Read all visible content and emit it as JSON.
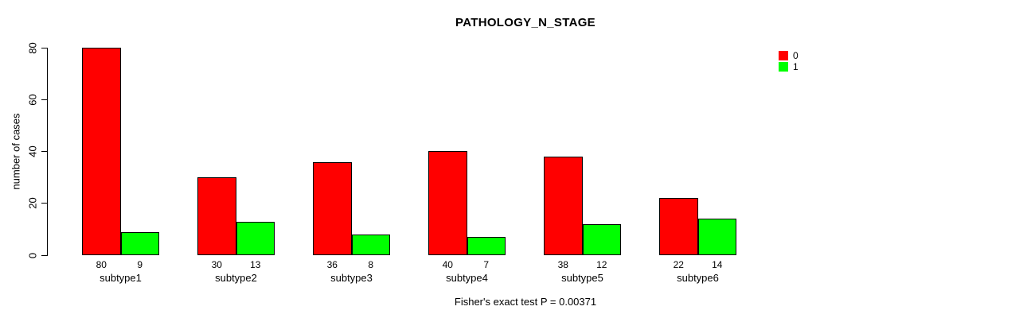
{
  "chart_data": {
    "type": "bar",
    "title": "PATHOLOGY_N_STAGE",
    "categories": [
      "subtype1",
      "subtype2",
      "subtype3",
      "subtype4",
      "subtype5",
      "subtype6"
    ],
    "series": [
      {
        "name": "0",
        "color": "#ff0000",
        "values": [
          80,
          30,
          36,
          40,
          38,
          22
        ]
      },
      {
        "name": "1",
        "color": "#00ff00",
        "values": [
          9,
          13,
          8,
          7,
          12,
          14
        ]
      }
    ],
    "ylabel": "number of cases",
    "xlabel": "",
    "yticks": [
      0,
      20,
      40,
      60,
      80
    ],
    "ylim": [
      0,
      80
    ],
    "grid": false,
    "legend_position": "top-right",
    "bar_value_labels": true,
    "footnote": "Fisher's exact test P = 0.00371"
  },
  "colors": {
    "background": "#ffffff",
    "axis": "#000000",
    "text": "#000000",
    "series_0": "#ff0000",
    "series_1": "#00ff00"
  }
}
